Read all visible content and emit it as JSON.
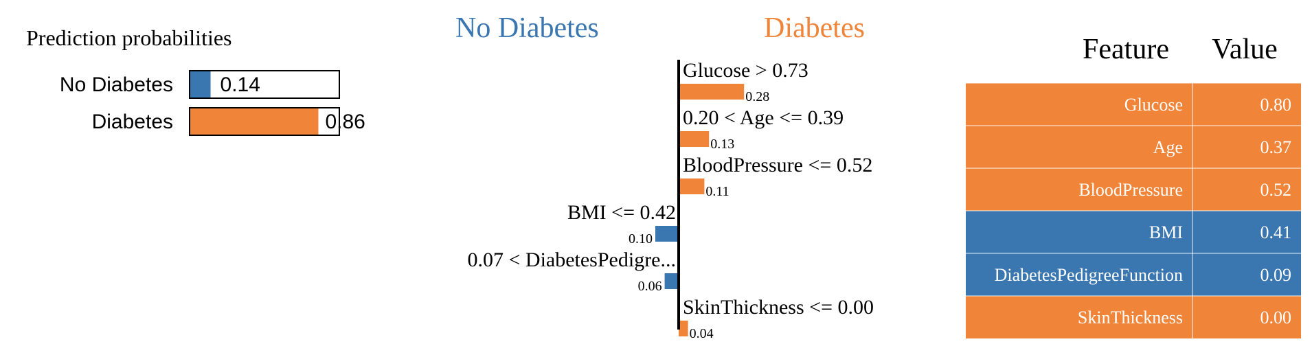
{
  "colors": {
    "no_diabetes": "#3a76b0",
    "diabetes": "#f0853a",
    "axis": "#000000",
    "table_border": "#ffffff"
  },
  "chart_data": [
    {
      "type": "bar",
      "orientation": "horizontal",
      "title": "Prediction probabilities",
      "categories": [
        "No Diabetes",
        "Diabetes"
      ],
      "values": [
        0.14,
        0.86
      ],
      "value_labels": [
        "0.14",
        "0.86"
      ],
      "xlim": [
        0,
        1
      ]
    },
    {
      "type": "bar",
      "orientation": "horizontal",
      "class_labels": {
        "negative": "No Diabetes",
        "positive": "Diabetes"
      },
      "categories": [
        "Glucose > 0.73",
        "0.20 < Age <= 0.39",
        "BloodPressure <= 0.52",
        "BMI <= 0.42",
        "0.07 < DiabetesPedigre...",
        "SkinThickness <= 0.00"
      ],
      "values": [
        0.28,
        0.13,
        0.11,
        -0.1,
        -0.06,
        0.04
      ],
      "value_labels": [
        "0.28",
        "0.13",
        "0.11",
        "0.10",
        "0.06",
        "0.04"
      ],
      "xlim": [
        -0.1,
        0.28
      ]
    },
    {
      "type": "table",
      "columns": [
        "Feature",
        "Value"
      ],
      "rows": [
        {
          "feature": "Glucose",
          "value": "0.80",
          "class": "diabetes"
        },
        {
          "feature": "Age",
          "value": "0.37",
          "class": "diabetes"
        },
        {
          "feature": "BloodPressure",
          "value": "0.52",
          "class": "diabetes"
        },
        {
          "feature": "BMI",
          "value": "0.41",
          "class": "no_diabetes"
        },
        {
          "feature": "DiabetesPedigreeFunction",
          "value": "0.09",
          "class": "no_diabetes"
        },
        {
          "feature": "SkinThickness",
          "value": "0.00",
          "class": "diabetes"
        }
      ]
    }
  ]
}
